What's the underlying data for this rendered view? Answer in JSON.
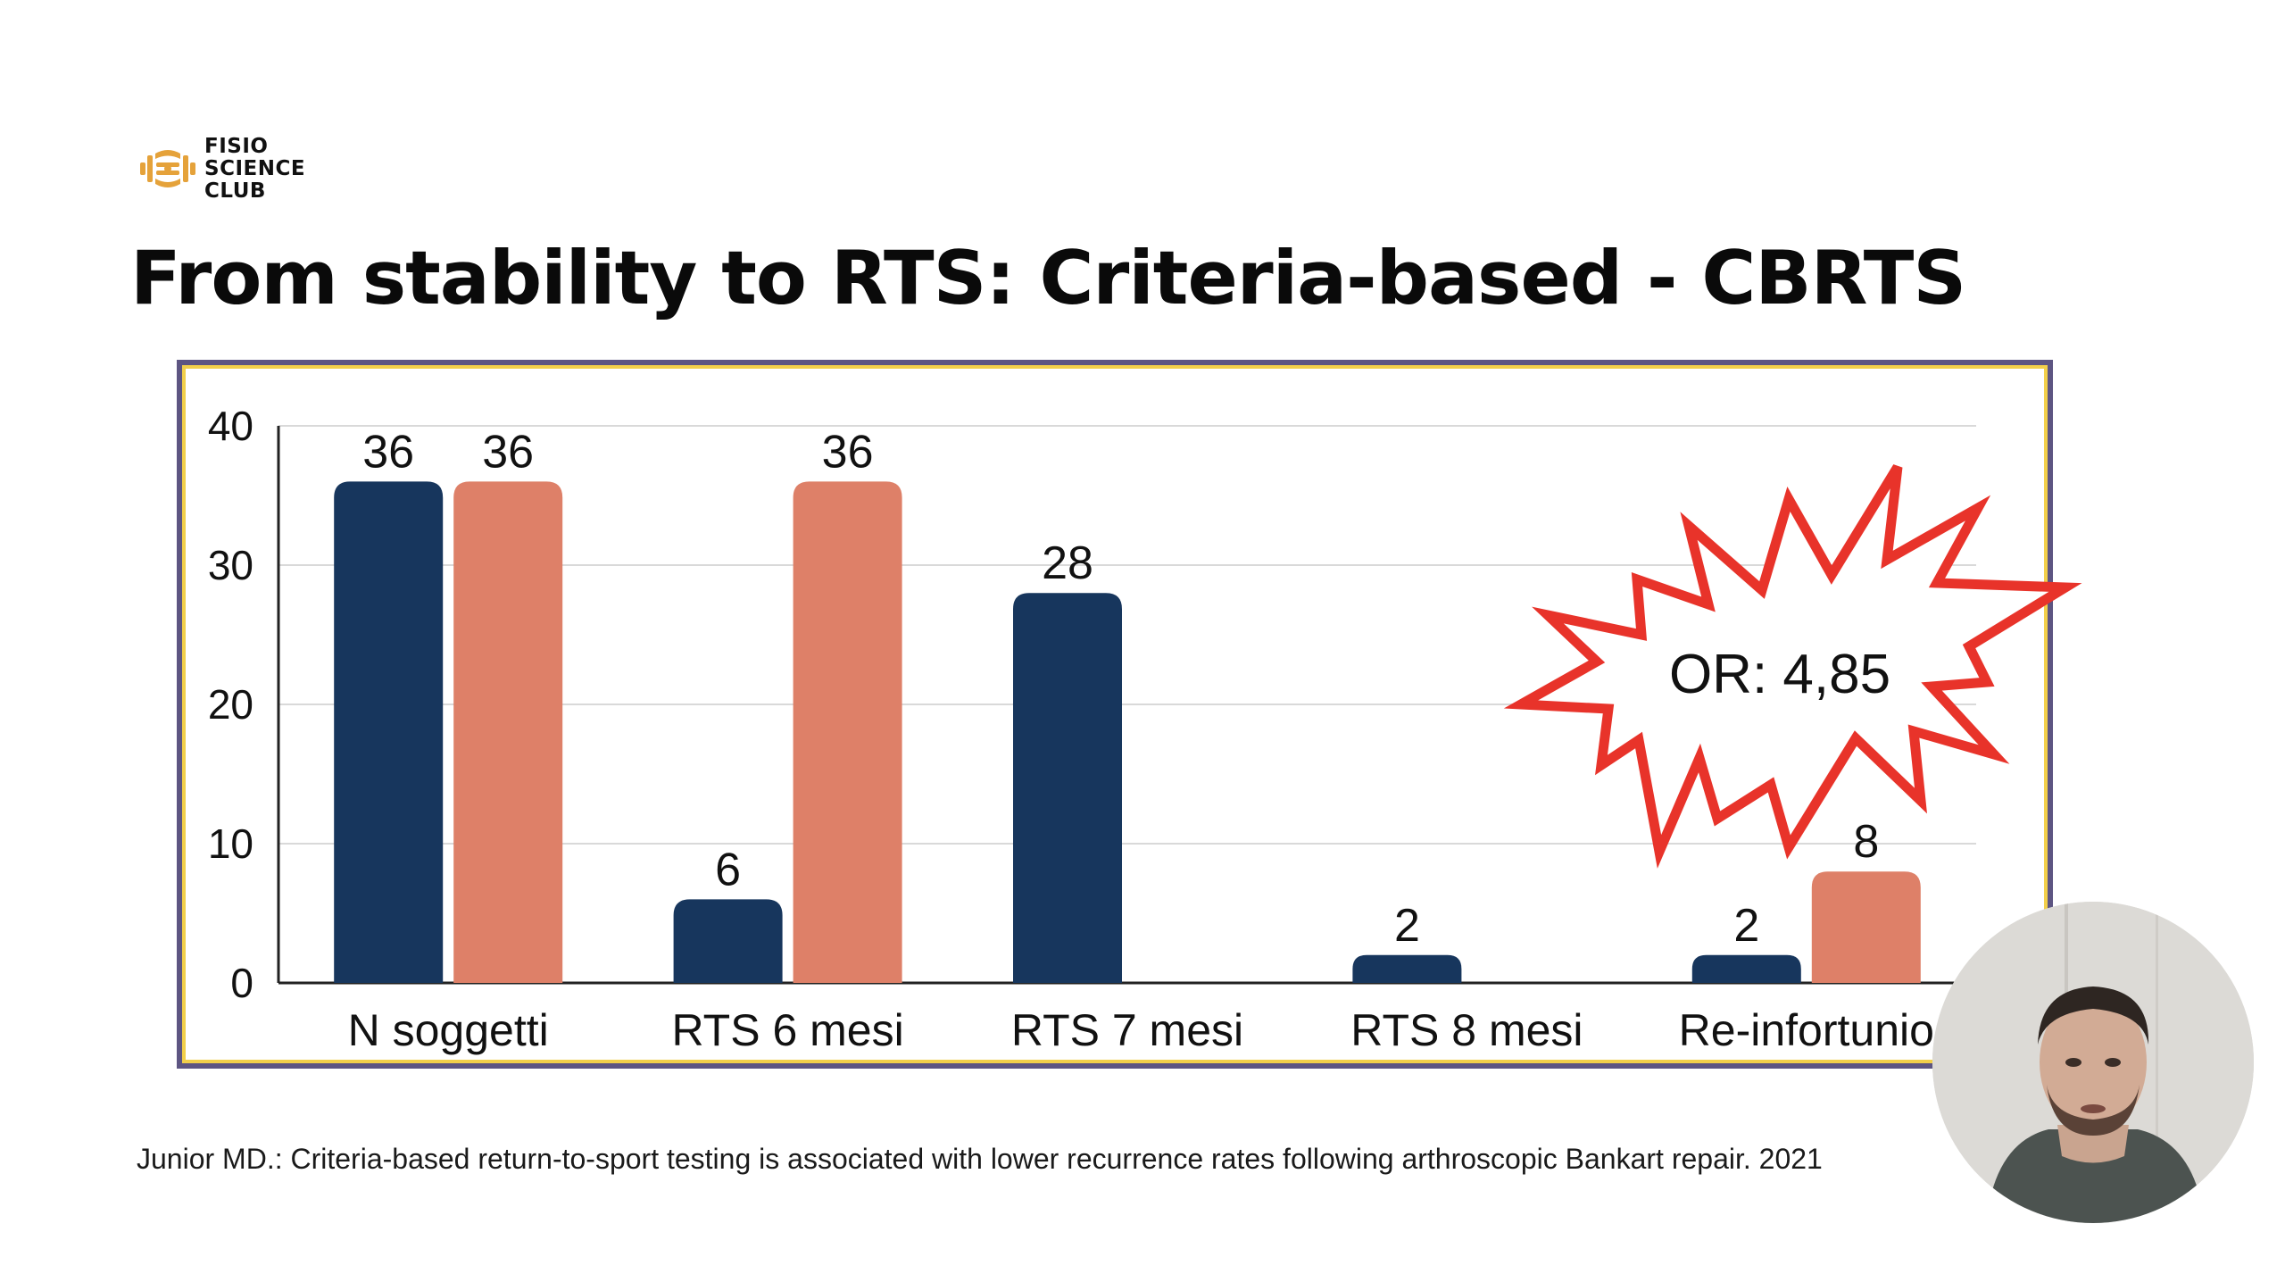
{
  "logo": {
    "lines": [
      "FISIO",
      "SCIENCE",
      "CLUB"
    ],
    "color": "#e5a23a"
  },
  "title": "From stability to RTS: Criteria-based - CBRTS",
  "chart_data": {
    "type": "bar",
    "categories": [
      "N soggetti",
      "RTS 6 mesi",
      "RTS 7 mesi",
      "RTS 8 mesi",
      "Re-infortunio"
    ],
    "series": [
      {
        "values": [
          36,
          6,
          28,
          2,
          2
        ],
        "color": "#17365d"
      },
      {
        "values": [
          36,
          36,
          null,
          null,
          8
        ],
        "color": "#de8068"
      }
    ],
    "title": "",
    "xlabel": "",
    "ylabel": "",
    "ylim": [
      0,
      40
    ],
    "yticks": [
      0,
      10,
      20,
      30,
      40
    ],
    "grid": true,
    "legend": "none",
    "annotation": {
      "text": "OR: 4,85",
      "shape": "starburst",
      "color": "#e8332a"
    }
  },
  "citation": "Junior MD.: Criteria-based return-to-sport testing is associated with lower recurrence rates following arthroscopic Bankart repair. 2021",
  "webcam": {
    "icon": "presenter-video-icon"
  }
}
